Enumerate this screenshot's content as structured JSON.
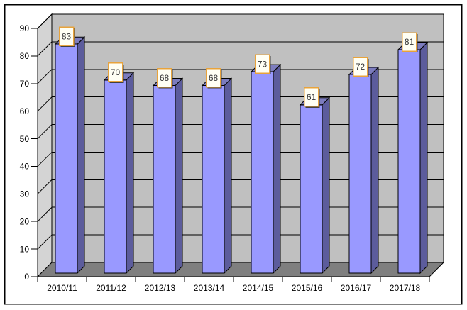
{
  "chart_data": {
    "type": "bar",
    "variant": "3d-column",
    "title": "",
    "xlabel": "",
    "ylabel": "",
    "categories": [
      "2010/11",
      "2011/12",
      "2012/13",
      "2013/14",
      "2014/15",
      "2015/16",
      "2016/17",
      "2017/18"
    ],
    "values": [
      83,
      70,
      68,
      68,
      73,
      61,
      72,
      81
    ],
    "ylim": [
      0,
      90
    ],
    "yticks": [
      0,
      10,
      20,
      30,
      40,
      50,
      60,
      70,
      80,
      90
    ],
    "grid": true,
    "legend": false,
    "data_labels": true,
    "colors": {
      "background": "#FFFFFF",
      "chart_border": "#000000",
      "back_wall": "#C0C0C0",
      "side_wall": "#D4D4D4",
      "floor": "#7F7F7F",
      "outline": "#000000",
      "gridline": "#000000",
      "bar_front": "#9999FF",
      "bar_side": "#5C5C9C",
      "bar_top": "#7C7CBE",
      "label_box_fill": "#FFFFF4",
      "label_box_border": "#E8A33C",
      "label_box_shadow": "#404040",
      "label_text": "#333333",
      "axis_text": "#000000"
    }
  }
}
